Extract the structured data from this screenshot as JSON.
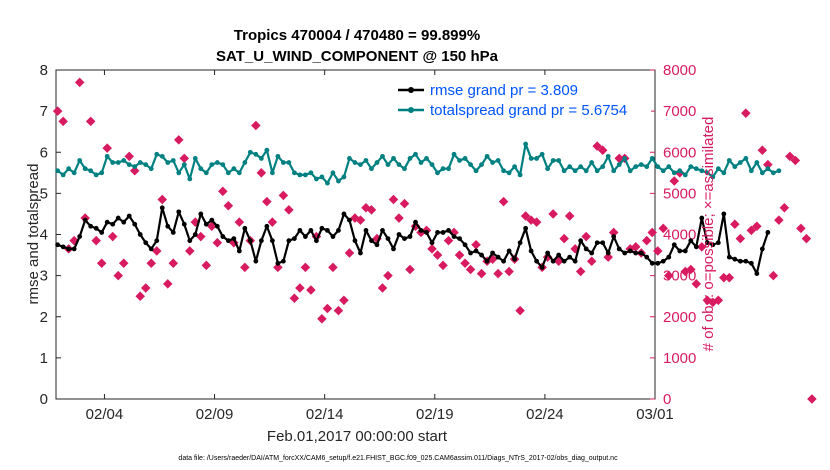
{
  "chart_data": {
    "type": "line",
    "title_line1": "Tropics 470004 / 470480 = 99.899%",
    "title_line2": "SAT_U_WIND_COMPONENT @ 150 hPa",
    "xlabel": "Feb.01,2017 00:00:00 start",
    "ylabel_left": "rmse and totalspread",
    "ylabel_right": "# of obs: o=possible; ×=assimilated",
    "footnote": "data file: /Users/raeder/DAI/ATM_forcXX/CAM6_setup/f.e21.FHIST_BGC.f09_025.CAM6assim.011/Diags_NTrS_2017-02/obs_diag_output.nc",
    "xlim": [
      0.8,
      28.0
    ],
    "ylim_left": [
      0,
      8
    ],
    "ylim_right": [
      0,
      8000
    ],
    "x_ticks": [
      {
        "value": 3,
        "label": "02/04"
      },
      {
        "value": 8,
        "label": "02/09"
      },
      {
        "value": 13,
        "label": "02/14"
      },
      {
        "value": 18,
        "label": "02/19"
      },
      {
        "value": 23,
        "label": "02/24"
      },
      {
        "value": 28,
        "label": "03/01"
      }
    ],
    "y_ticks_left": [
      "0",
      "1",
      "2",
      "3",
      "4",
      "5",
      "6",
      "7",
      "8"
    ],
    "y_ticks_right": [
      "0",
      "1000",
      "2000",
      "3000",
      "4000",
      "5000",
      "6000",
      "7000",
      "8000"
    ],
    "colors": {
      "rmse": "#000000",
      "spread": "#008080",
      "obs": "#d81b60",
      "right_axis": "#d81b60",
      "legend_text": "#0055ff"
    },
    "legend": [
      {
        "name": "rmse grand pr = 3.809",
        "color": "#000000"
      },
      {
        "name": "totalspread grand pr = 5.6754",
        "color": "#008080"
      }
    ],
    "series": [
      {
        "name": "rmse",
        "x_start": 0.875,
        "x_step": 0.25,
        "values": [
          3.75,
          3.7,
          3.65,
          3.65,
          3.95,
          4.35,
          4.2,
          4.15,
          4.05,
          4.3,
          4.25,
          4.4,
          4.3,
          4.45,
          4.25,
          4.0,
          3.8,
          3.65,
          3.85,
          4.65,
          4.2,
          4.05,
          4.55,
          4.25,
          3.85,
          4.0,
          4.5,
          4.25,
          4.35,
          4.2,
          3.95,
          3.85,
          3.9,
          3.6,
          4.15,
          3.85,
          3.35,
          3.85,
          4.2,
          3.85,
          3.3,
          3.35,
          3.85,
          3.9,
          4.1,
          3.95,
          4.1,
          3.85,
          4.15,
          4.1,
          3.95,
          4.1,
          4.5,
          4.35,
          3.85,
          3.55,
          4.1,
          3.85,
          3.75,
          4.1,
          3.9,
          3.65,
          4.0,
          3.9,
          3.95,
          4.3,
          4.1,
          4.05,
          3.8,
          4.05,
          4.05,
          4.1,
          3.95,
          3.9,
          3.75,
          3.55,
          3.6,
          3.5,
          3.35,
          3.55,
          3.45,
          3.35,
          3.6,
          3.4,
          3.8,
          4.15,
          3.6,
          3.35,
          3.2,
          3.55,
          3.35,
          3.5,
          3.35,
          3.45,
          3.35,
          3.85,
          3.65,
          3.55,
          3.8,
          3.8,
          3.55,
          3.95,
          3.65,
          3.55,
          3.6,
          3.55,
          3.55,
          3.45,
          3.3,
          3.3,
          3.35,
          3.45,
          3.75,
          3.6,
          3.6,
          3.85,
          3.7,
          4.4,
          3.8,
          3.75,
          3.8,
          4.5,
          3.45,
          3.4,
          3.35,
          3.35,
          3.3,
          3.05,
          3.65,
          4.05
        ]
      },
      {
        "name": "totalspread",
        "x_start": 0.875,
        "x_step": 0.25,
        "values": [
          5.55,
          5.45,
          5.6,
          5.5,
          5.8,
          5.6,
          5.55,
          5.45,
          5.5,
          5.9,
          5.75,
          5.75,
          5.8,
          5.7,
          5.65,
          5.75,
          5.7,
          5.6,
          5.95,
          5.9,
          5.75,
          5.8,
          5.5,
          5.7,
          5.35,
          5.85,
          5.6,
          5.5,
          5.7,
          5.75,
          5.7,
          5.5,
          5.6,
          5.5,
          5.75,
          6.0,
          5.95,
          5.85,
          6.05,
          5.5,
          5.9,
          5.75,
          5.75,
          5.5,
          5.45,
          5.45,
          5.5,
          5.35,
          5.4,
          5.25,
          5.5,
          5.3,
          5.4,
          5.85,
          5.75,
          5.7,
          5.8,
          5.6,
          5.75,
          5.9,
          5.7,
          5.85,
          5.7,
          5.6,
          5.85,
          5.95,
          5.75,
          5.85,
          5.7,
          5.5,
          5.6,
          5.6,
          5.95,
          5.8,
          5.85,
          5.7,
          5.55,
          5.7,
          5.9,
          5.75,
          5.8,
          5.55,
          5.5,
          5.65,
          5.45,
          6.2,
          5.85,
          5.85,
          5.95,
          5.6,
          5.8,
          5.8,
          5.55,
          5.65,
          5.55,
          5.65,
          5.55,
          5.75,
          5.55,
          5.65,
          5.9,
          5.55,
          5.7,
          5.85,
          5.55,
          5.65,
          5.7,
          5.65,
          5.85,
          5.65,
          5.55,
          5.65,
          5.5,
          5.55,
          5.45,
          5.65,
          5.6,
          5.55,
          5.5,
          5.4,
          5.6,
          5.5,
          5.8,
          5.65,
          5.75,
          5.85,
          5.55,
          5.75,
          5.5,
          5.6,
          5.5,
          5.55
        ]
      },
      {
        "name": "obs_assimilated",
        "x_start": 0.875,
        "x_step": 0.25,
        "values": [
          7000,
          6750,
          3650,
          3850,
          7700,
          4400,
          6750,
          3850,
          3300,
          6100,
          3950,
          3000,
          3300,
          5900,
          5550,
          2500,
          2700,
          3300,
          3600,
          4850,
          2800,
          3300,
          6300,
          5850,
          3600,
          4300,
          3950,
          3250,
          4200,
          3800,
          5050,
          4700,
          3800,
          4300,
          3200,
          3850,
          6650,
          5500,
          4800,
          4300,
          3200,
          4950,
          4600,
          2450,
          2700,
          3200,
          2650,
          3950,
          1950,
          2200,
          3200,
          2150,
          2400,
          3550,
          4400,
          4350,
          4650,
          4600,
          3900,
          2700,
          3000,
          4850,
          4400,
          4750,
          3150,
          4200,
          4050,
          4100,
          3650,
          3500,
          3250,
          3850,
          4050,
          3500,
          3300,
          3150,
          3750,
          3050,
          3350,
          3400,
          3050,
          4800,
          3100,
          3400,
          2150,
          4450,
          4350,
          4300,
          3200,
          3450,
          4500,
          3350,
          3900,
          4450,
          3650,
          3100,
          3950,
          3350,
          6150,
          6050,
          3450,
          4050,
          5850,
          5850,
          3650,
          3700,
          3550,
          3850,
          4050,
          3600,
          4150,
          3000,
          5300,
          5500,
          3100,
          3150,
          2800,
          3700,
          2400,
          2350,
          2400,
          2950,
          2950,
          4250,
          3900,
          6950,
          4100,
          4200,
          6050,
          5700,
          3000,
          4350,
          4650,
          5900,
          5800,
          4150,
          3900,
          0
        ]
      }
    ]
  }
}
